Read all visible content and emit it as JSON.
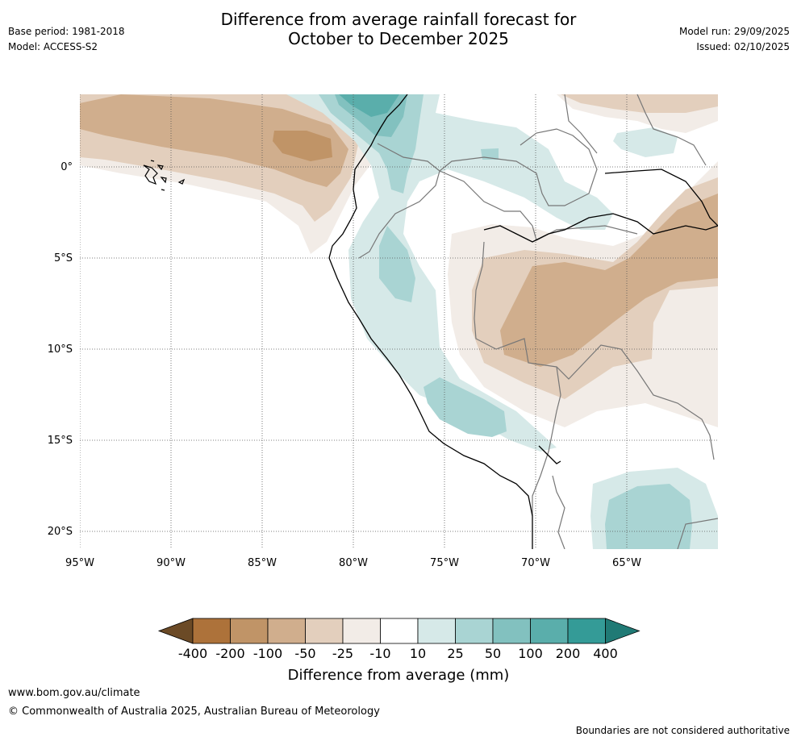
{
  "header": {
    "base_period": "Base period: 1981-2018",
    "model": "Model: ACCESS-S2",
    "model_run": "Model run: 29/09/2025",
    "issued": "Issued: 02/10/2025",
    "title_line1": "Difference from average rainfall forecast for",
    "title_line2": "October to December 2025"
  },
  "map": {
    "lat_labels": [
      "0°",
      "5°S",
      "10°S",
      "15°S",
      "20°S"
    ],
    "lon_labels": [
      "95°W",
      "90°W",
      "85°W",
      "80°W",
      "75°W",
      "70°W",
      "65°W"
    ]
  },
  "colorbar": {
    "label": "Difference from average (mm)",
    "ticks": [
      "-400",
      "-200",
      "-100",
      "-50",
      "-25",
      "-10",
      "10",
      "25",
      "50",
      "100",
      "200",
      "400"
    ],
    "colors": [
      "#6b4a26",
      "#ad723a",
      "#c09467",
      "#d0ae8d",
      "#e3cfbd",
      "#f2ece7",
      "#ffffff",
      "#d6e9e8",
      "#a9d4d3",
      "#82c1bf",
      "#5aaeab",
      "#349b97",
      "#207a75"
    ]
  },
  "footer": {
    "site": "www.bom.gov.au/climate",
    "copyright": "© Commonwealth of Australia 2025, Australian Bureau of Meteorology",
    "disclaimer": "Boundaries are not considered authoritative"
  }
}
